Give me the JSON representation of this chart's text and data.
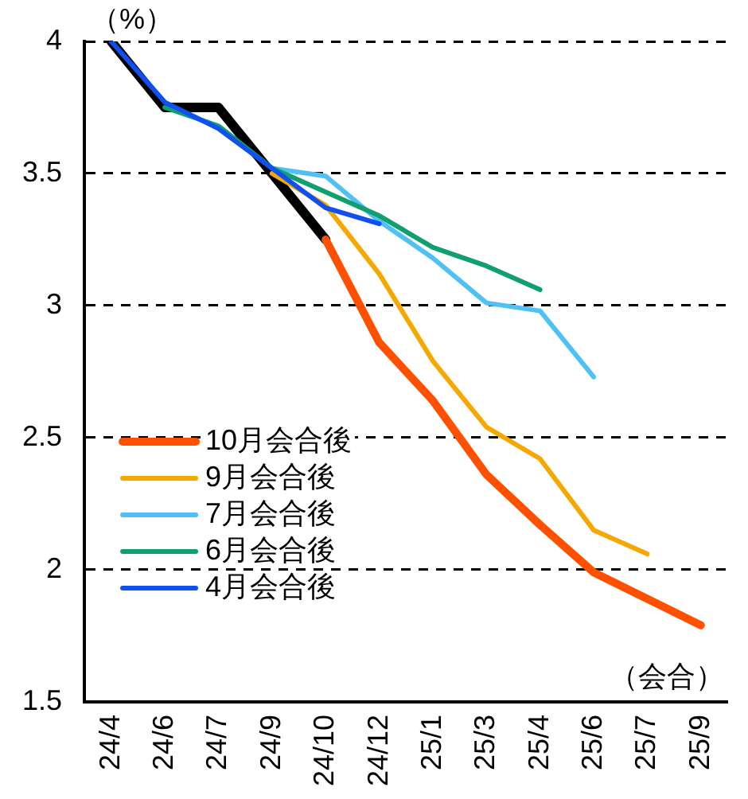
{
  "chart_data": {
    "type": "line",
    "ylabel": "（%）",
    "xlabel": "（会合）",
    "categories": [
      "24/4",
      "24/6",
      "24/7",
      "24/9",
      "24/10",
      "24/12",
      "25/1",
      "25/3",
      "25/4",
      "25/6",
      "25/7",
      "25/9"
    ],
    "series": [
      {
        "color": "#000000",
        "values": [
          4.0,
          3.75,
          3.75,
          3.5,
          3.25,
          null,
          null,
          null,
          null,
          null,
          null,
          null
        ]
      },
      {
        "name": "10月会合後",
        "color": "#ff5000",
        "values": [
          null,
          null,
          null,
          null,
          3.25,
          2.86,
          2.64,
          2.36,
          2.17,
          1.99,
          1.89,
          1.79
        ]
      },
      {
        "name": "9月会合後",
        "color": "#f5a800",
        "values": [
          null,
          null,
          null,
          3.5,
          3.38,
          3.12,
          2.79,
          2.54,
          2.42,
          2.15,
          2.06,
          null
        ]
      },
      {
        "name": "7月会合後",
        "color": "#50c0f5",
        "values": [
          null,
          null,
          null,
          3.52,
          3.49,
          3.32,
          3.18,
          3.01,
          2.98,
          2.73,
          null,
          null
        ]
      },
      {
        "name": "6月会合後",
        "color": "#10a070",
        "values": [
          null,
          3.75,
          3.68,
          3.52,
          3.43,
          3.34,
          3.22,
          3.15,
          3.06,
          null,
          null,
          null
        ]
      },
      {
        "name": "4月会合後",
        "color": "#1050f0",
        "values": [
          4.0,
          3.77,
          3.67,
          3.52,
          3.37,
          3.31,
          null,
          null,
          null,
          null,
          null,
          null
        ]
      }
    ],
    "ylim": [
      1.5,
      4
    ],
    "yticks": [
      1.5,
      2,
      2.5,
      3,
      3.5,
      4
    ],
    "grid": "y",
    "legend": "bottom left",
    "marker": "none",
    "line_style": "solid"
  }
}
